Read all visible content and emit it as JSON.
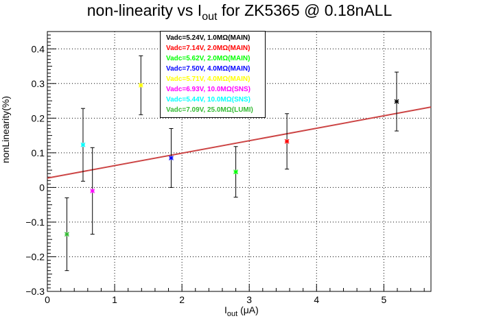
{
  "title": {
    "prefix": "non-linearity vs I",
    "sub": "out",
    "suffix": " for ZK5365 @ 0.18nALL"
  },
  "axes": {
    "xlabel_prefix": "I",
    "xlabel_sub": "out",
    "xlabel_suffix": " (μA)",
    "ylabel": "nonLinearity(%)"
  },
  "legend": [
    {
      "label": "Vadc=5.24V, 1.0MΩ(MAIN)",
      "color": "#000000"
    },
    {
      "label": "Vadc=7.14V, 2.0MΩ(MAIN)",
      "color": "#ff0000"
    },
    {
      "label": "Vadc=5.62V, 2.0MΩ(MAIN)",
      "color": "#00ff00"
    },
    {
      "label": "Vadc=7.50V, 4.0MΩ(MAIN)",
      "color": "#0000ff"
    },
    {
      "label": "Vadc=5.71V, 4.0MΩ(MAIN)",
      "color": "#ffff00"
    },
    {
      "label": "Vadc=6.93V, 10.0MΩ(SNS)",
      "color": "#ff00ff"
    },
    {
      "label": "Vadc=5.44V, 10.0MΩ(SNS)",
      "color": "#00ffff"
    },
    {
      "label": "Vadc=7.09V, 25.0MΩ(LUMI)",
      "color": "#33bb33"
    }
  ],
  "chart_data": {
    "type": "scatter",
    "xlim": [
      0,
      5.7
    ],
    "ylim": [
      -0.3,
      0.45
    ],
    "xticks": [
      "0",
      "1",
      "2",
      "3",
      "4",
      "5"
    ],
    "xtick_values": [
      0,
      1,
      2,
      3,
      4,
      5
    ],
    "yticks": [
      "−0.3",
      "−0.2",
      "−0.1",
      "0",
      "0.1",
      "0.2",
      "0.3",
      "0.4"
    ],
    "ytick_values": [
      -0.3,
      -0.2,
      -0.1,
      0,
      0.1,
      0.2,
      0.3,
      0.4
    ],
    "grid": true,
    "legend_position": "top-center",
    "points": [
      {
        "x": 0.29,
        "y": -0.135,
        "err": 0.105,
        "color": "#33bb33"
      },
      {
        "x": 0.53,
        "y": 0.123,
        "err": 0.105,
        "color": "#00ffff"
      },
      {
        "x": 0.67,
        "y": -0.01,
        "err": 0.125,
        "color": "#ff00ff"
      },
      {
        "x": 1.39,
        "y": 0.295,
        "err": 0.085,
        "color": "#ffff00"
      },
      {
        "x": 1.84,
        "y": 0.085,
        "err": 0.085,
        "color": "#0000ff"
      },
      {
        "x": 2.8,
        "y": 0.045,
        "err": 0.073,
        "color": "#00ff00"
      },
      {
        "x": 3.56,
        "y": 0.133,
        "err": 0.08,
        "color": "#ff0000"
      },
      {
        "x": 5.19,
        "y": 0.248,
        "err": 0.085,
        "color": "#000000"
      }
    ],
    "fit_line": {
      "x": [
        0,
        5.7
      ],
      "y": [
        0.027,
        0.232
      ],
      "color": "#cc4444"
    }
  }
}
